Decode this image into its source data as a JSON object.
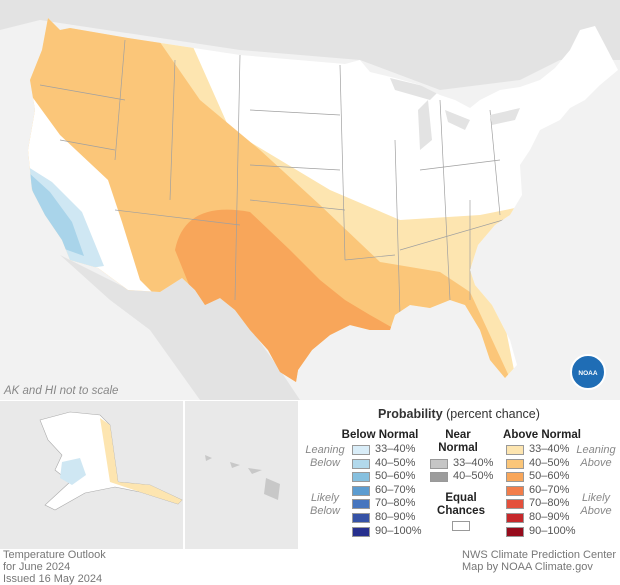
{
  "map": {
    "note": "AK and HI not to scale",
    "logo": "NOAA"
  },
  "legend": {
    "title": "Probability",
    "subtitle": "(percent chance)",
    "below": {
      "heading": "Below Normal",
      "leaning": "Leaning Below",
      "likely": "Likely Below",
      "items": [
        {
          "label": "33–40%",
          "color": "#d9edf8"
        },
        {
          "label": "40–50%",
          "color": "#b2d9ec"
        },
        {
          "label": "50–60%",
          "color": "#86c0df"
        },
        {
          "label": "60–70%",
          "color": "#5c9cd0"
        },
        {
          "label": "70–80%",
          "color": "#4776bf"
        },
        {
          "label": "80–90%",
          "color": "#3552a6"
        },
        {
          "label": "90–100%",
          "color": "#27308e"
        }
      ]
    },
    "near": {
      "heading": "Near Normal",
      "items": [
        {
          "label": "33–40%",
          "color": "#c6c6c6"
        },
        {
          "label": "40–50%",
          "color": "#9c9c9c"
        }
      ]
    },
    "equal": {
      "heading": "Equal Chances",
      "color": "#ffffff"
    },
    "above": {
      "heading": "Above Normal",
      "leaning": "Leaning Above",
      "likely": "Likely Above",
      "items": [
        {
          "label": "33–40%",
          "color": "#fde5b0"
        },
        {
          "label": "40–50%",
          "color": "#fbc679"
        },
        {
          "label": "50–60%",
          "color": "#f8a65a"
        },
        {
          "label": "60–70%",
          "color": "#f27d4a"
        },
        {
          "label": "70–80%",
          "color": "#e4503c"
        },
        {
          "label": "80–90%",
          "color": "#c6282b"
        },
        {
          "label": "90–100%",
          "color": "#960b1c"
        }
      ]
    }
  },
  "footer": {
    "left": [
      "Temperature Outlook",
      "for June 2024",
      "Issued 16 May 2024"
    ],
    "right": [
      "NWS Climate Prediction Center",
      "Map by NOAA Climate.gov"
    ]
  }
}
